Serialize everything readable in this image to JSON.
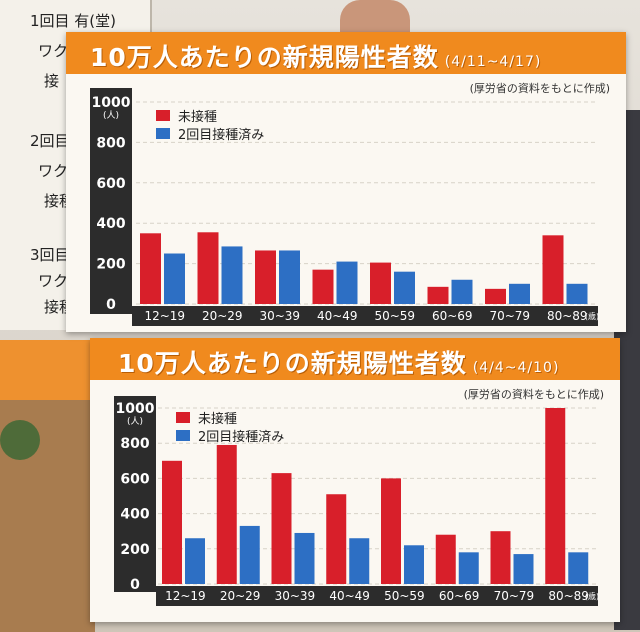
{
  "colors": {
    "unvaccinated": "#d81f2a",
    "vaccinated": "#2d6fc4",
    "header": "#f08a1e"
  },
  "background": {
    "board_lines": [
      "1回目 有(堂)",
      "ワク",
      "接",
      "2回目",
      "ワク",
      "接種",
      "3回目",
      "ワク",
      "接種"
    ]
  },
  "chart_data": [
    {
      "type": "bar",
      "title": "10万人あたりの新規陽性者数",
      "range": "(4/11~4/17)",
      "source": "(厚労省の資料をもとに作成)",
      "y_unit": "(人)",
      "x_unit": "(歳)",
      "ylim": [
        0,
        1000
      ],
      "yticks": [
        "0",
        "200",
        "400",
        "600",
        "800",
        "1000"
      ],
      "categories": [
        "12~19",
        "20~29",
        "30~39",
        "40~49",
        "50~59",
        "60~69",
        "70~79",
        "80~89"
      ],
      "series": [
        {
          "name": "未接種",
          "values": [
            350,
            355,
            265,
            170,
            205,
            85,
            75,
            340
          ]
        },
        {
          "name": "2回目接種済み",
          "values": [
            250,
            285,
            265,
            210,
            160,
            120,
            100,
            100
          ]
        }
      ]
    },
    {
      "type": "bar",
      "title": "10万人あたりの新規陽性者数",
      "range": "(4/4~4/10)",
      "source": "(厚労省の資料をもとに作成)",
      "y_unit": "(人)",
      "x_unit": "(歳)",
      "ylim": [
        0,
        1000
      ],
      "yticks": [
        "0",
        "200",
        "400",
        "600",
        "800",
        "1000"
      ],
      "categories": [
        "12~19",
        "20~29",
        "30~39",
        "40~49",
        "50~59",
        "60~69",
        "70~79",
        "80~89"
      ],
      "series": [
        {
          "name": "未接種",
          "values": [
            700,
            790,
            630,
            510,
            600,
            280,
            300,
            1000
          ]
        },
        {
          "name": "2回目接種済み",
          "values": [
            260,
            330,
            290,
            260,
            220,
            180,
            170,
            180
          ]
        }
      ]
    }
  ]
}
